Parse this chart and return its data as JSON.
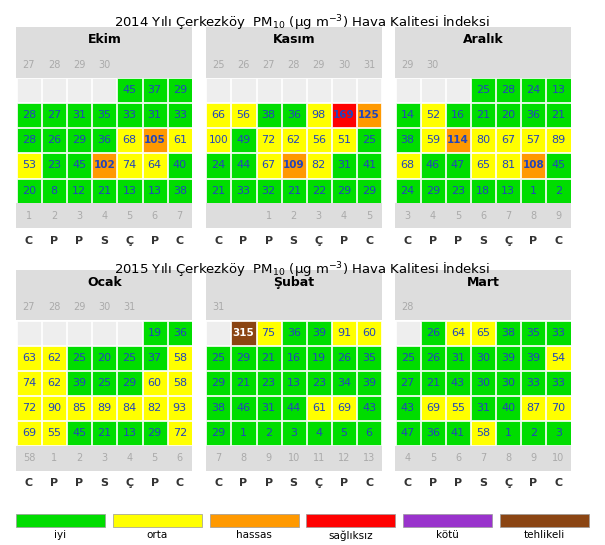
{
  "bg_color": "#ffffff",
  "legend_items": [
    {
      "label": "iyi",
      "color": "#00dd00"
    },
    {
      "label": "orta",
      "color": "#ffff00"
    },
    {
      "label": "hassas",
      "color": "#ff9900"
    },
    {
      "label": "sağlıksız",
      "color": "#ff0000"
    },
    {
      "label": "kötü",
      "color": "#9933cc"
    },
    {
      "label": "tehlikeli",
      "color": "#8B4513"
    }
  ],
  "months_2014": [
    {
      "name": "Ekim",
      "weekday_labels": [
        "C",
        "P",
        "P",
        "S",
        "Ç",
        "P",
        "C"
      ],
      "prev_row": [
        27,
        28,
        29,
        30,
        null,
        null,
        null
      ],
      "data_rows": [
        [
          null,
          null,
          null,
          null,
          45,
          37,
          29
        ],
        [
          28,
          27,
          31,
          35,
          33,
          31,
          33
        ],
        [
          28,
          26,
          29,
          36,
          68,
          105,
          61
        ],
        [
          53,
          23,
          45,
          102,
          74,
          64,
          40
        ],
        [
          20,
          8,
          12,
          21,
          13,
          13,
          38
        ]
      ],
      "next_row": [
        1,
        2,
        3,
        4,
        5,
        6,
        7
      ]
    },
    {
      "name": "Kasım",
      "weekday_labels": [
        "C",
        "P",
        "P",
        "S",
        "Ç",
        "P",
        "C"
      ],
      "prev_row": [
        25,
        26,
        27,
        28,
        29,
        30,
        31
      ],
      "data_rows": [
        [
          null,
          null,
          null,
          null,
          null,
          null,
          null
        ],
        [
          66,
          56,
          38,
          36,
          98,
          169,
          125
        ],
        [
          100,
          49,
          72,
          62,
          56,
          51,
          25
        ],
        [
          24,
          44,
          67,
          109,
          82,
          31,
          41
        ],
        [
          21,
          33,
          32,
          21,
          22,
          29,
          29
        ]
      ],
      "next_row": [
        null,
        null,
        1,
        2,
        3,
        4,
        5
      ]
    },
    {
      "name": "Aralık",
      "weekday_labels": [
        "C",
        "P",
        "P",
        "S",
        "Ç",
        "P",
        "C"
      ],
      "prev_row": [
        29,
        30,
        null,
        null,
        null,
        null,
        null
      ],
      "data_rows": [
        [
          null,
          null,
          null,
          25,
          28,
          24,
          13
        ],
        [
          14,
          52,
          16,
          21,
          20,
          36,
          21
        ],
        [
          38,
          59,
          114,
          80,
          67,
          57,
          89
        ],
        [
          68,
          46,
          47,
          65,
          81,
          108,
          45
        ],
        [
          24,
          29,
          23,
          18,
          13,
          1,
          2
        ]
      ],
      "next_row": [
        3,
        4,
        5,
        6,
        7,
        8,
        9
      ]
    }
  ],
  "months_2015": [
    {
      "name": "Ocak",
      "weekday_labels": [
        "C",
        "P",
        "P",
        "S",
        "Ç",
        "P",
        "C"
      ],
      "prev_row": [
        27,
        28,
        29,
        30,
        31,
        null,
        null
      ],
      "data_rows": [
        [
          null,
          null,
          null,
          null,
          null,
          19,
          36
        ],
        [
          63,
          62,
          25,
          20,
          25,
          37,
          58
        ],
        [
          74,
          62,
          39,
          25,
          29,
          60,
          58
        ],
        [
          72,
          90,
          85,
          89,
          84,
          82,
          93
        ],
        [
          69,
          55,
          45,
          21,
          13,
          29,
          72
        ]
      ],
      "next_row": [
        58,
        1,
        2,
        3,
        4,
        5,
        6
      ]
    },
    {
      "name": "Şubat",
      "weekday_labels": [
        "C",
        "P",
        "P",
        "S",
        "Ç",
        "P",
        "C"
      ],
      "prev_row": [
        31,
        null,
        null,
        null,
        null,
        null,
        null
      ],
      "data_rows": [
        [
          null,
          315,
          75,
          36,
          39,
          91,
          60
        ],
        [
          25,
          29,
          21,
          16,
          19,
          26,
          35
        ],
        [
          29,
          21,
          23,
          13,
          23,
          34,
          39
        ],
        [
          38,
          46,
          31,
          44,
          61,
          69,
          43
        ],
        [
          29,
          1,
          2,
          3,
          4,
          5,
          6
        ]
      ],
      "next_row": [
        7,
        8,
        9,
        10,
        11,
        12,
        13
      ]
    },
    {
      "name": "Mart",
      "weekday_labels": [
        "C",
        "P",
        "P",
        "S",
        "Ç",
        "P",
        "C"
      ],
      "prev_row": [
        28,
        null,
        null,
        null,
        null,
        null,
        null
      ],
      "data_rows": [
        [
          null,
          26,
          64,
          65,
          38,
          35,
          33
        ],
        [
          25,
          26,
          31,
          30,
          39,
          39,
          54
        ],
        [
          27,
          21,
          43,
          30,
          30,
          33,
          33
        ],
        [
          43,
          69,
          55,
          31,
          40,
          87,
          70
        ],
        [
          47,
          36,
          41,
          58,
          1,
          2,
          3
        ]
      ],
      "next_row": [
        4,
        5,
        6,
        7,
        8,
        9,
        10
      ]
    }
  ],
  "color_thresholds": [
    {
      "max": 50,
      "color": "#00dd00"
    },
    {
      "max": 100,
      "color": "#ffff00"
    },
    {
      "max": 150,
      "color": "#ff9900"
    },
    {
      "max": 200,
      "color": "#ff0000"
    },
    {
      "max": 300,
      "color": "#9933cc"
    },
    {
      "max": 99999,
      "color": "#8B4513"
    }
  ],
  "text_color_data": "#2244bb",
  "gray_text": "#aaaaaa",
  "header_bg": "#dddddd",
  "empty_bg": "#eeeeee",
  "white": "#ffffff"
}
